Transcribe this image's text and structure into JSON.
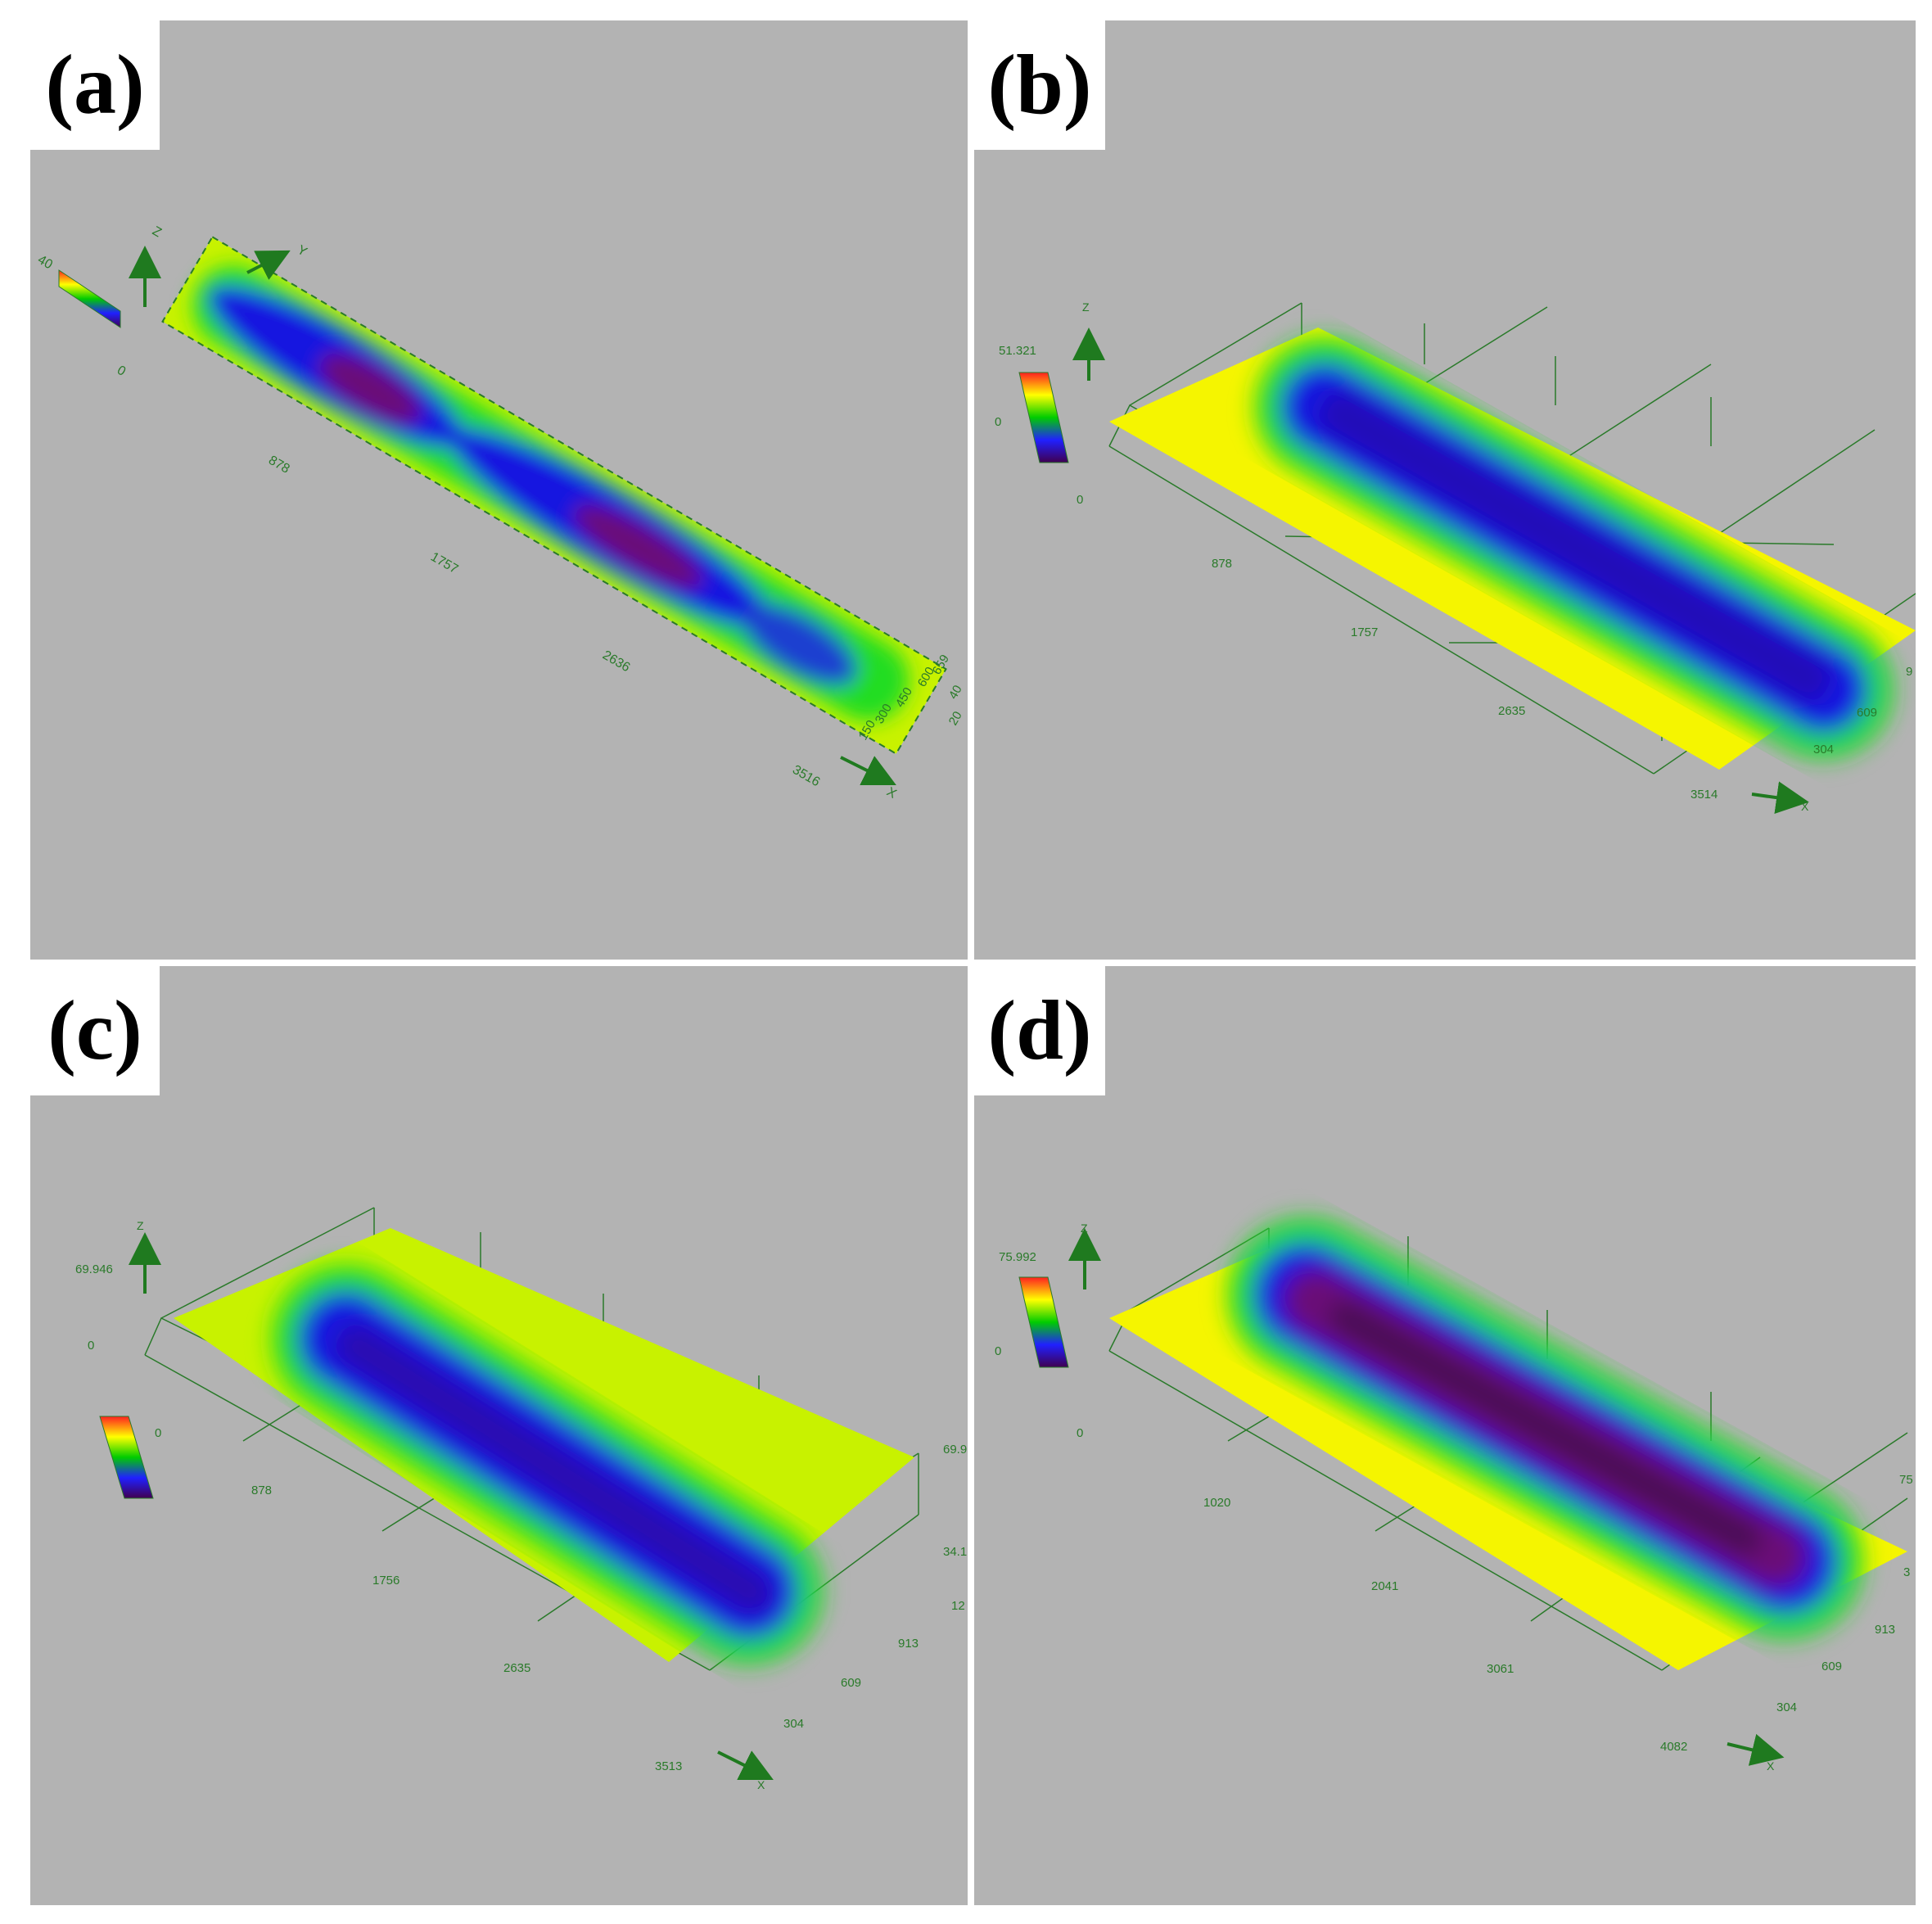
{
  "panels": [
    {
      "label": "(a)",
      "colorbar": {
        "max": "40",
        "mid": "",
        "zero": "0"
      },
      "axes": {
        "x": "X",
        "y": "Y",
        "z": "Z"
      },
      "x_ticks": [
        "878",
        "1757",
        "2636",
        "3516"
      ],
      "y_ticks": [
        "150",
        "300",
        "450",
        "600",
        "659"
      ],
      "z_ticks": [
        "40",
        "20"
      ]
    },
    {
      "label": "(b)",
      "colorbar": {
        "max": "51.321",
        "mid": "0",
        "zero": "0"
      },
      "axes": {
        "x": "X",
        "z": "Z"
      },
      "x_ticks": [
        "878",
        "1757",
        "2635",
        "3514"
      ],
      "y_ticks": [
        "304",
        "609",
        "9"
      ]
    },
    {
      "label": "(c)",
      "colorbar": {
        "max": "69.946",
        "mid": "0",
        "zero": "0"
      },
      "axes": {
        "x": "X",
        "z": "Z"
      },
      "x_ticks": [
        "878",
        "1756",
        "2635",
        "3513"
      ],
      "y_ticks": [
        "304",
        "609",
        "913",
        "12"
      ],
      "z_ticks": [
        "69.9",
        "34.1"
      ]
    },
    {
      "label": "(d)",
      "colorbar": {
        "max": "75.992",
        "mid": "0",
        "zero": "0"
      },
      "axes": {
        "x": "X",
        "z": "Z"
      },
      "x_ticks": [
        "1020",
        "2041",
        "3061",
        "4082"
      ],
      "y_ticks": [
        "304",
        "609",
        "913",
        "3"
      ],
      "z_ticks": [
        "75"
      ]
    }
  ],
  "colors": {
    "background": "#b3b3b3",
    "axis_green": "#2a7a2a",
    "arrow_green": "#1f7a1f",
    "surface_yellow": "#f5f500",
    "surface_lime": "#c8f200",
    "rim_green": "#22dd22",
    "pit_blue": "#1515e0",
    "pit_purple": "#6a1078"
  }
}
